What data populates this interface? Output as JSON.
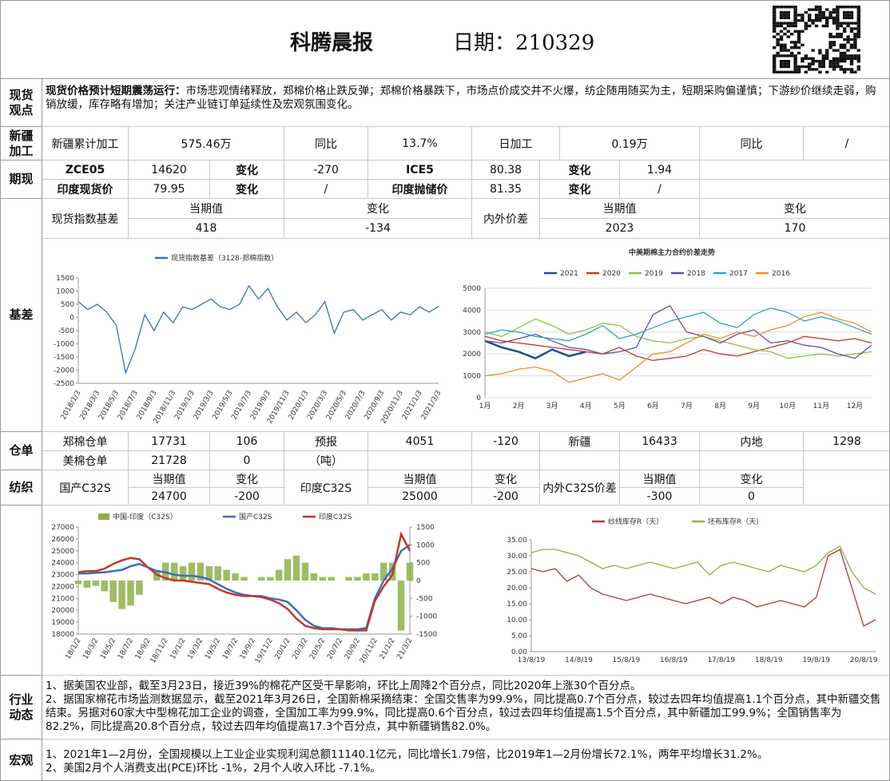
{
  "header": {
    "title": "科腾晨报",
    "date": "日期：210329"
  },
  "sections": [
    "现货观点",
    "新疆加工",
    "期现",
    "基差",
    "仓单",
    "纺织",
    "行业动态",
    "宏观"
  ],
  "view": {
    "lead": "现货价格预计短期震荡运行：",
    "text": "市场悲观情绪释放，郑棉价格止跌反弹；郑棉价格暴跌下，市场点价成交并不火爆，纺企随用随买为主，短期采购偏谨慎；下游纱价继续走弱，购销放缓，库存略有增加；关注产业链订单延续性及宏观氛围变化。"
  },
  "xinjiang": [
    "新疆累计加工",
    "575.46万",
    "同比",
    "13.7%",
    "日加工",
    "0.19万",
    "同比",
    "/"
  ],
  "futures": [
    [
      "ZCE05",
      14620,
      "变化",
      -270,
      "ICE5",
      80.38,
      "变化",
      1.94
    ],
    [
      "印度现货价",
      79.95,
      "变化",
      "/",
      "印度抛储价",
      81.35,
      "变化",
      "/"
    ]
  ],
  "basis": [
    {
      "name": "现货指数基差",
      "cur_h": "当期值",
      "chg_h": "变化",
      "cur": 418,
      "chg": -134
    },
    {
      "name": "内外价差",
      "cur_h": "当期值",
      "chg_h": "变化",
      "cur": 2023,
      "chg": 170
    }
  ],
  "warehouse": [
    [
      "郑棉仓单",
      17731,
      106,
      "预报",
      4051,
      -120,
      "新疆",
      16433,
      "内地",
      1298
    ],
    [
      "美棉仓单",
      21728,
      0,
      "（吨）"
    ]
  ],
  "textile": [
    {
      "name": "国产C32S",
      "cur_h": "当期值",
      "chg_h": "变化",
      "cur": 24700,
      "chg": -200
    },
    {
      "name": "印度C32S",
      "cur_h": "当期值",
      "chg_h": "变化",
      "cur": 25000,
      "chg": -200
    },
    {
      "name": "内外C32S价差",
      "cur_h": "当期值",
      "chg_h": "变化",
      "cur": -300,
      "chg": 0
    }
  ],
  "news": [
    "1、据美国农业部，截至3月23日，接近39%的棉花产区受干旱影响，环比上周降2个百分点，同比2020年上涨30个百分点。",
    "2、据国家棉花市场监测数据显示，截至2021年3月26日，全国新棉采摘结束：全国交售率为99.9%，同比提高0.7个百分点，较过去四年均值提高1.1个百分点，其中新疆交售结束。另据对60家大中型棉花加工企业的调查，全国加工率为99.9%，同比提高0.6个百分点，较过去四年均值提高1.5个百分点，其中新疆加工99.9%；全国销售率为82.2%，同比提高20.8个百分点，较过去四年均值提高17.3个百分点，其中新疆销售82.0%。"
  ],
  "macro": [
    "1、2021年1—2月份，全国规模以上工业企业实现利润总额11140.1亿元，同比增长1.79倍，比2019年1—2月份增长72.1%，两年平均增长31.2%。",
    "2、美国2月个人消费支出(PCE)环比 -1%，2月个人收入环比 -7.1%。"
  ],
  "chart_data": [
    {
      "type": "line",
      "categories": [
        "2018/1/3",
        null,
        "2018/3/3",
        null,
        "2018/5/3",
        null,
        "2018/7/3",
        null,
        "2018/9/3",
        null,
        "2018/11/3",
        null,
        "2019/1/3",
        null,
        "2019/3/3",
        null,
        "2019/5/3",
        null,
        "2019/7/3",
        null,
        "2019/9/3",
        null,
        "2019/11/3",
        null,
        "2020/1/3",
        null,
        "2020/3/3",
        null,
        "2020/5/3",
        null,
        "2020/7/3",
        null,
        "2020/9/3",
        null,
        "2020/11/3",
        null,
        "2021/1/3",
        null,
        "2021/3/3"
      ],
      "series": [
        {
          "name": "现货指数基差（3128-郑棉指数）",
          "color": "#3c6fb6",
          "values": [
            600,
            300,
            500,
            200,
            -300,
            -2100,
            -1200,
            100,
            -500,
            200,
            -200,
            400,
            300,
            500,
            700,
            400,
            300,
            500,
            1200,
            700,
            1100,
            400,
            -100,
            200,
            -200,
            100,
            600,
            -600,
            200,
            300,
            -100,
            100,
            300,
            -100,
            200,
            100,
            400,
            200,
            418
          ]
        }
      ],
      "ylim": [
        -2500,
        1500
      ],
      "yticks": [
        -2500,
        -2000,
        -1500,
        -1000,
        -500,
        0,
        500,
        1000,
        1500
      ],
      "grid": false
    },
    {
      "type": "line",
      "title": "中美期棉主力合约价差走势",
      "categories": [
        "1月",
        null,
        "2月",
        null,
        "3月",
        null,
        "4月",
        null,
        "5月",
        null,
        "6月",
        null,
        "7月",
        null,
        "8月",
        null,
        "9月",
        null,
        "10月",
        null,
        "11月",
        null,
        "12月",
        null
      ],
      "series": [
        {
          "name": "2021",
          "color": "#1f4e96",
          "values": [
            2600,
            2300,
            2100,
            1800,
            2200,
            1900,
            2100,
            null,
            null,
            null,
            null,
            null,
            null,
            null,
            null,
            null,
            null,
            null,
            null,
            null,
            null,
            null,
            null,
            null
          ]
        },
        {
          "name": "2020",
          "color": "#c0392b",
          "values": [
            2800,
            2600,
            2500,
            2400,
            2300,
            2200,
            2100,
            2000,
            2300,
            1900,
            1700,
            1800,
            1900,
            2200,
            2000,
            1900,
            2100,
            2300,
            2500,
            2800,
            2700,
            2600,
            2700,
            2500
          ]
        },
        {
          "name": "2019",
          "color": "#8bc34a",
          "values": [
            3000,
            2800,
            3200,
            3600,
            3300,
            2900,
            3100,
            3400,
            3300,
            2800,
            2600,
            2500,
            2700,
            2800,
            2600,
            2400,
            2200,
            2100,
            1800,
            1900,
            2000,
            1900,
            2000,
            2100
          ]
        },
        {
          "name": "2018",
          "color": "#6a4c9c",
          "values": [
            2600,
            2500,
            2700,
            2900,
            2600,
            2300,
            2200,
            2000,
            2100,
            2300,
            3800,
            4200,
            3000,
            2800,
            2500,
            2900,
            3100,
            2500,
            2600,
            2400,
            2300,
            2000,
            1800,
            2400
          ]
        },
        {
          "name": "2017",
          "color": "#2aa6c0",
          "values": [
            2900,
            3100,
            3000,
            2800,
            2700,
            2600,
            2900,
            3300,
            2700,
            2900,
            3200,
            3500,
            3700,
            3900,
            3400,
            3200,
            3800,
            4100,
            3900,
            3500,
            3700,
            3500,
            3200,
            2900
          ]
        },
        {
          "name": "2016",
          "color": "#f08c2a",
          "values": [
            1000,
            1100,
            1300,
            1400,
            1200,
            700,
            900,
            1100,
            800,
            1400,
            2000,
            2100,
            2500,
            2900,
            2700,
            3000,
            2800,
            3100,
            3300,
            3700,
            3900,
            3600,
            3400,
            3000
          ]
        }
      ],
      "ylim": [
        0,
        5000
      ],
      "yticks": [
        0,
        1000,
        2000,
        3000,
        4000,
        5000
      ],
      "grid": true
    },
    {
      "type": "combo",
      "categories": [
        "18/1/2",
        null,
        "18/3/2",
        null,
        "18/5/2",
        null,
        "18/7/2",
        null,
        "18/9/2",
        null,
        "18/11/2",
        null,
        "19/1/2",
        null,
        "19/3/2",
        null,
        "19/5/2",
        null,
        "19/7/2",
        null,
        "19/9/2",
        null,
        "19/11/2",
        null,
        "20/1/2",
        null,
        "20/3/2",
        null,
        "20/5/2",
        null,
        "20/7/2",
        null,
        "20/9/2",
        null,
        "20/11/2",
        null,
        "21/1/2",
        null,
        "21/3/2"
      ],
      "series": [
        {
          "name": "中国-印度（C32S）",
          "color": "#8db04a",
          "type": "bar",
          "axis": "y2",
          "values": [
            -100,
            -200,
            -150,
            -300,
            -600,
            -800,
            -700,
            -400,
            0,
            300,
            500,
            500,
            400,
            500,
            500,
            400,
            400,
            300,
            200,
            100,
            0,
            100,
            100,
            300,
            600,
            700,
            500,
            200,
            100,
            100,
            0,
            100,
            100,
            200,
            200,
            500,
            500,
            -1400,
            500
          ]
        },
        {
          "name": "国产C32S",
          "color": "#3c6fb6",
          "values": [
            23100,
            23100,
            23150,
            23200,
            23300,
            23400,
            23700,
            23900,
            23600,
            23300,
            23200,
            23000,
            22900,
            22900,
            22800,
            22600,
            22200,
            21800,
            21500,
            21300,
            21200,
            21200,
            21000,
            20900,
            20700,
            20000,
            19200,
            18700,
            18500,
            18500,
            18400,
            18400,
            18400,
            18500,
            21000,
            22500,
            23500,
            25000,
            25500
          ]
        },
        {
          "name": "印度C32S",
          "color": "#c0392b",
          "values": [
            23200,
            23300,
            23300,
            23500,
            23900,
            24200,
            24400,
            24300,
            23600,
            23000,
            22700,
            22500,
            22500,
            22400,
            22300,
            22200,
            21800,
            21500,
            21300,
            21200,
            21200,
            21100,
            20900,
            20600,
            20100,
            19300,
            18700,
            18500,
            18400,
            18400,
            18400,
            18300,
            18300,
            18300,
            20800,
            22000,
            23000,
            26400,
            25000
          ]
        }
      ],
      "ylim": [
        18000,
        27000
      ],
      "yticks": [
        18000,
        19000,
        20000,
        21000,
        22000,
        23000,
        24000,
        25000,
        26000,
        27000
      ],
      "y2lim": [
        -1500,
        1500
      ],
      "y2ticks": [
        -1500,
        -1000,
        -500,
        0,
        500,
        1000,
        1500
      ],
      "grid": false
    },
    {
      "type": "line",
      "categories": [
        "13/8/19",
        null,
        null,
        null,
        "14/8/19",
        null,
        null,
        null,
        "15/8/19",
        null,
        null,
        null,
        "16/8/19",
        null,
        null,
        null,
        "17/8/19",
        null,
        null,
        null,
        "18/8/19",
        null,
        null,
        null,
        "19/8/19",
        null,
        null,
        null,
        "20/8/19",
        null
      ],
      "series": [
        {
          "name": "纱线库存R（天）",
          "color": "#b23a3a",
          "values": [
            26,
            25,
            26,
            22,
            24,
            20,
            18,
            17,
            16,
            17,
            18,
            17,
            16,
            15,
            16,
            17,
            15,
            17,
            16,
            14,
            15,
            16,
            15,
            14,
            17,
            30,
            32,
            20,
            8,
            10
          ]
        },
        {
          "name": "坯布库存R（天）",
          "color": "#8db04a",
          "values": [
            31,
            32,
            32,
            31,
            30,
            28,
            26,
            27,
            26,
            27,
            28,
            27,
            26,
            27,
            28,
            24,
            27,
            28,
            27,
            26,
            25,
            27,
            26,
            25,
            27,
            31,
            33,
            25,
            20,
            18
          ]
        }
      ],
      "ylim": [
        0,
        35
      ],
      "yticks": [
        {
          "value": 0,
          "label": "0.00"
        },
        {
          "value": 5,
          "label": "5.00"
        },
        {
          "value": 10,
          "label": "10.00"
        },
        {
          "value": 15,
          "label": "15.00"
        },
        {
          "value": 20,
          "label": "20.00"
        },
        {
          "value": 25,
          "label": "25.00"
        },
        {
          "value": 30,
          "label": "30.00"
        },
        {
          "value": 35,
          "label": "35.00"
        }
      ],
      "grid": false
    }
  ]
}
